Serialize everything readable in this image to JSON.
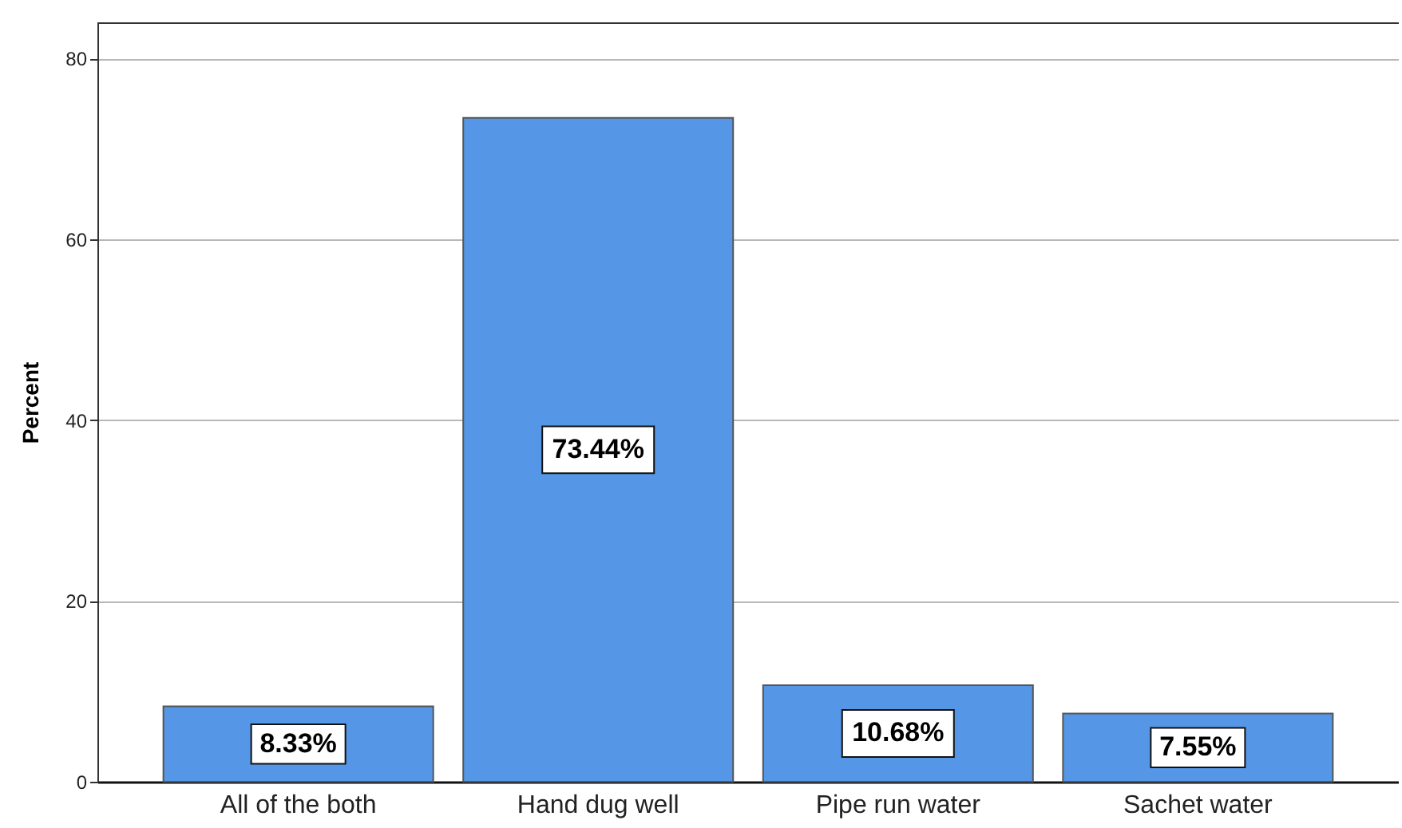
{
  "chart_data": {
    "type": "bar",
    "ylabel": "Percent",
    "categories": [
      "All of the both",
      "Hand dug well",
      "Pipe run water",
      "Sachet water"
    ],
    "values": [
      8.33,
      73.44,
      10.68,
      7.55
    ],
    "value_labels": [
      "8.33%",
      "73.44%",
      "10.68%",
      "7.55%"
    ],
    "color": "#5596e6",
    "ylim": [
      0,
      84
    ],
    "yticks": [
      0,
      20,
      40,
      60,
      80
    ],
    "grid": "y"
  }
}
